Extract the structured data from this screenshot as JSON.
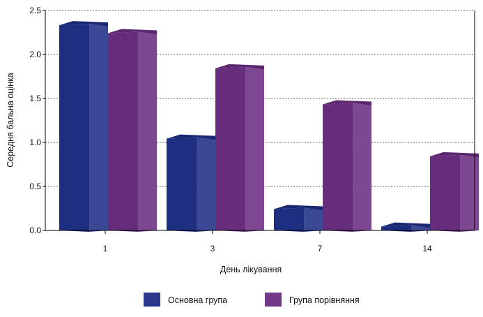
{
  "chart_data": {
    "type": "bar",
    "categories": [
      "1",
      "3",
      "7",
      "14"
    ],
    "series": [
      {
        "name": "Основна група",
        "values": [
          2.38,
          1.09,
          0.29,
          0.09
        ],
        "color": "#1f2f86"
      },
      {
        "name": "Група порівняння",
        "values": [
          2.29,
          1.89,
          1.48,
          0.89
        ],
        "color": "#6b2f82"
      }
    ],
    "xlabel": "День лікування",
    "ylabel": "Середня бальна оцінка",
    "ylim": [
      0,
      2.5
    ],
    "yticks": [
      "0.0",
      "0.5",
      "1.0",
      "1.5",
      "2.0",
      "2.5"
    ],
    "grid": true,
    "legend_position": "bottom",
    "bar_style": "3d"
  }
}
